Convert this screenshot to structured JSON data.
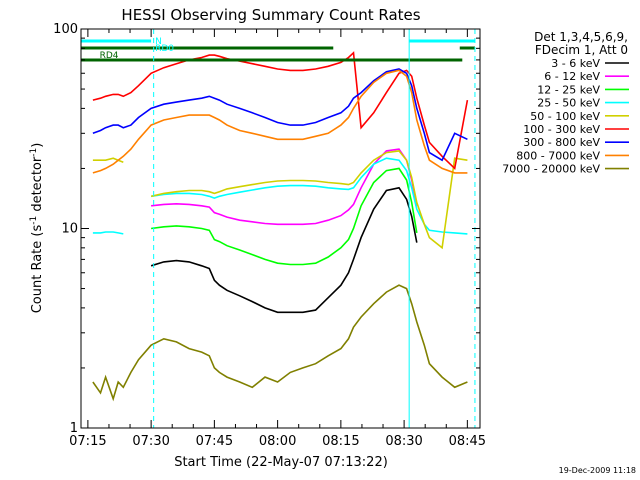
{
  "chart_data": {
    "type": "line",
    "title": "HESSI Observing Summary Count Rates",
    "xlabel": "Start Time (22-May-07 07:13:22)",
    "ylabel": "Count Rate (s⁻¹ detector⁻¹)",
    "ylabel_main": "Count Rate (s",
    "ylabel_sup1": "-1",
    "ylabel_mid": " detector",
    "ylabel_sup2": "-1",
    "ylabel_end": ")",
    "y_scale": "log",
    "xlim": [
      7.2228,
      8.8
    ],
    "ylim": [
      1,
      100
    ],
    "x_ticks": [
      {
        "label": "07:15",
        "value": 7.25
      },
      {
        "label": "07:30",
        "value": 7.5
      },
      {
        "label": "07:45",
        "value": 7.75
      },
      {
        "label": "08:00",
        "value": 8.0
      },
      {
        "label": "08:15",
        "value": 8.25
      },
      {
        "label": "08:30",
        "value": 8.5
      },
      {
        "label": "08:45",
        "value": 8.75
      }
    ],
    "y_ticks": [
      {
        "label": "1",
        "value": 1
      },
      {
        "label": "10",
        "value": 10
      },
      {
        "label": "100",
        "value": 100
      }
    ],
    "legend": {
      "placement": "right",
      "header_line1": "Det 1,3,4,5,6,9,",
      "header_line2": "FDecim 1, Att 0"
    },
    "grid": false,
    "series": [
      {
        "name": "3 - 6 keV",
        "color": "#000000",
        "x": [
          7.27,
          7.3,
          7.32,
          7.35,
          7.37,
          7.39,
          7.42,
          7.45,
          7.5,
          7.55,
          7.6,
          7.65,
          7.7,
          7.73,
          7.75,
          7.77,
          7.8,
          7.85,
          7.9,
          7.95,
          8.0,
          8.05,
          8.1,
          8.15,
          8.2,
          8.25,
          8.28,
          8.3,
          8.33,
          8.38,
          8.43,
          8.48,
          8.51,
          8.53,
          8.55,
          8.58,
          8.6,
          8.65,
          8.7,
          8.75
        ],
        "y": [
          0,
          0,
          0,
          0,
          0,
          0,
          0,
          0,
          6.5,
          6.8,
          6.9,
          6.8,
          6.5,
          6.3,
          5.5,
          5.2,
          4.9,
          4.6,
          4.3,
          4.0,
          3.8,
          3.8,
          3.8,
          3.9,
          4.5,
          5.2,
          6.0,
          7.0,
          9.0,
          12.5,
          15.5,
          16.0,
          14.0,
          11.5,
          8.5,
          0,
          0,
          0,
          0,
          0
        ]
      },
      {
        "name": "6 - 12 keV",
        "color": "#ff00ff",
        "x": [
          7.27,
          7.3,
          7.32,
          7.35,
          7.37,
          7.39,
          7.42,
          7.45,
          7.5,
          7.55,
          7.6,
          7.65,
          7.7,
          7.73,
          7.75,
          7.77,
          7.8,
          7.85,
          7.9,
          7.95,
          8.0,
          8.05,
          8.1,
          8.15,
          8.2,
          8.25,
          8.28,
          8.3,
          8.33,
          8.38,
          8.43,
          8.48,
          8.51,
          8.53,
          8.55,
          8.58,
          8.6,
          8.65,
          8.7,
          8.75
        ],
        "y": [
          0,
          0,
          0,
          0,
          0,
          0,
          0,
          0,
          13.0,
          13.2,
          13.3,
          13.2,
          13.0,
          12.8,
          12.0,
          11.8,
          11.4,
          11.0,
          10.8,
          10.6,
          10.5,
          10.5,
          10.5,
          10.6,
          11.0,
          11.6,
          12.4,
          13.2,
          16.0,
          21.0,
          24.5,
          25.0,
          22.0,
          17.5,
          13.0,
          0,
          0,
          0,
          0,
          0
        ]
      },
      {
        "name": "12 - 25 keV",
        "color": "#00ff00",
        "x": [
          7.27,
          7.3,
          7.32,
          7.35,
          7.37,
          7.39,
          7.42,
          7.45,
          7.5,
          7.55,
          7.6,
          7.65,
          7.7,
          7.73,
          7.75,
          7.77,
          7.8,
          7.85,
          7.9,
          7.95,
          8.0,
          8.05,
          8.1,
          8.15,
          8.2,
          8.25,
          8.28,
          8.3,
          8.33,
          8.38,
          8.43,
          8.48,
          8.51,
          8.53,
          8.55,
          8.58,
          8.6,
          8.65,
          8.7,
          8.75
        ],
        "y": [
          0,
          0,
          0,
          0,
          0,
          0,
          0,
          0,
          10.0,
          10.2,
          10.3,
          10.2,
          10.0,
          9.8,
          8.8,
          8.6,
          8.2,
          7.8,
          7.4,
          7.0,
          6.7,
          6.6,
          6.6,
          6.7,
          7.2,
          8.0,
          8.8,
          10.0,
          13.0,
          17.0,
          19.5,
          20.0,
          17.5,
          13.5,
          9.5,
          0,
          0,
          0,
          0,
          0
        ]
      },
      {
        "name": "25 - 50 keV",
        "color": "#00ffff",
        "x": [
          7.27,
          7.3,
          7.32,
          7.35,
          7.37,
          7.39,
          7.42,
          7.45,
          7.5,
          7.55,
          7.6,
          7.65,
          7.7,
          7.73,
          7.75,
          7.77,
          7.8,
          7.85,
          7.9,
          7.95,
          8.0,
          8.05,
          8.1,
          8.15,
          8.2,
          8.25,
          8.28,
          8.3,
          8.33,
          8.38,
          8.43,
          8.48,
          8.51,
          8.53,
          8.55,
          8.58,
          8.6,
          8.65,
          8.7,
          8.75
        ],
        "y": [
          9.5,
          9.5,
          9.6,
          9.6,
          9.5,
          9.4,
          0,
          0,
          14.5,
          14.8,
          15.0,
          15.0,
          14.8,
          14.5,
          14.2,
          14.5,
          14.8,
          15.2,
          15.6,
          16.0,
          16.3,
          16.4,
          16.4,
          16.3,
          16.0,
          15.8,
          15.7,
          16.0,
          18.0,
          21.0,
          22.5,
          22.0,
          19.5,
          16.0,
          12.5,
          10.5,
          9.8,
          9.6,
          9.5,
          9.4
        ]
      },
      {
        "name": "50 - 100 keV",
        "color": "#d0d000",
        "x": [
          7.27,
          7.3,
          7.32,
          7.35,
          7.37,
          7.39,
          7.42,
          7.45,
          7.5,
          7.55,
          7.6,
          7.65,
          7.7,
          7.73,
          7.75,
          7.77,
          7.8,
          7.85,
          7.9,
          7.95,
          8.0,
          8.05,
          8.1,
          8.15,
          8.2,
          8.25,
          8.28,
          8.3,
          8.33,
          8.38,
          8.43,
          8.48,
          8.51,
          8.53,
          8.55,
          8.58,
          8.6,
          8.65,
          8.7,
          8.75
        ],
        "y": [
          22,
          22,
          22,
          22.5,
          22,
          21.5,
          0,
          0,
          14.5,
          15.0,
          15.3,
          15.5,
          15.5,
          15.3,
          15.0,
          15.3,
          15.8,
          16.2,
          16.6,
          17.0,
          17.3,
          17.4,
          17.4,
          17.3,
          17.0,
          16.8,
          16.6,
          17.0,
          19.0,
          22.0,
          24.0,
          24.5,
          22.0,
          18.0,
          13.5,
          10.5,
          9.0,
          8.0,
          22.5,
          22
        ]
      },
      {
        "name": "100 - 300 keV",
        "color": "#ff0000",
        "x": [
          7.27,
          7.3,
          7.32,
          7.35,
          7.37,
          7.39,
          7.42,
          7.45,
          7.5,
          7.55,
          7.6,
          7.65,
          7.7,
          7.73,
          7.75,
          7.77,
          7.8,
          7.85,
          7.9,
          7.95,
          8.0,
          8.05,
          8.1,
          8.15,
          8.2,
          8.25,
          8.28,
          8.3,
          8.33,
          8.38,
          8.43,
          8.48,
          8.51,
          8.53,
          8.55,
          8.58,
          8.6,
          8.65,
          8.7,
          8.75
        ],
        "y": [
          44,
          45,
          46,
          47,
          47,
          46,
          48,
          52,
          60,
          64,
          67,
          70,
          72,
          74,
          74,
          73,
          71,
          69,
          67,
          65,
          63,
          62,
          62,
          63,
          65,
          68,
          72,
          76,
          32,
          38,
          48,
          60,
          62,
          58,
          45,
          33,
          27,
          23,
          20,
          44
        ]
      },
      {
        "name": "300 - 800 keV",
        "color": "#0000ff",
        "x": [
          7.27,
          7.3,
          7.32,
          7.35,
          7.37,
          7.39,
          7.42,
          7.45,
          7.5,
          7.55,
          7.6,
          7.65,
          7.7,
          7.73,
          7.75,
          7.77,
          7.8,
          7.85,
          7.9,
          7.95,
          8.0,
          8.05,
          8.1,
          8.15,
          8.2,
          8.25,
          8.28,
          8.3,
          8.33,
          8.38,
          8.43,
          8.48,
          8.51,
          8.53,
          8.55,
          8.58,
          8.6,
          8.65,
          8.7,
          8.75
        ],
        "y": [
          30,
          31,
          32,
          33,
          33,
          32,
          33,
          36,
          40,
          42,
          43,
          44,
          45,
          46,
          45,
          44,
          42,
          40,
          38,
          36,
          34,
          33,
          33,
          34,
          36,
          38,
          41,
          45,
          48,
          55,
          61,
          63,
          60,
          52,
          40,
          30,
          24,
          22,
          30,
          28
        ]
      },
      {
        "name": "800 - 7000 keV",
        "color": "#ff8000",
        "x": [
          7.27,
          7.3,
          7.32,
          7.35,
          7.37,
          7.39,
          7.42,
          7.45,
          7.5,
          7.55,
          7.6,
          7.65,
          7.7,
          7.73,
          7.75,
          7.77,
          7.8,
          7.85,
          7.9,
          7.95,
          8.0,
          8.05,
          8.1,
          8.15,
          8.2,
          8.25,
          8.28,
          8.3,
          8.33,
          8.38,
          8.43,
          8.48,
          8.51,
          8.53,
          8.55,
          8.58,
          8.6,
          8.65,
          8.7,
          8.75
        ],
        "y": [
          19,
          19.5,
          20,
          21,
          22,
          23,
          25,
          28,
          33,
          35,
          36,
          37,
          37,
          37,
          36,
          35,
          33,
          31,
          30,
          29,
          28,
          28,
          28,
          29,
          30,
          33,
          36,
          40,
          46,
          54,
          60,
          62,
          58,
          48,
          35,
          26,
          22,
          20,
          19,
          19
        ]
      },
      {
        "name": "7000 - 20000 keV",
        "color": "#808000",
        "x": [
          7.27,
          7.3,
          7.32,
          7.35,
          7.37,
          7.39,
          7.42,
          7.45,
          7.5,
          7.55,
          7.6,
          7.65,
          7.7,
          7.73,
          7.75,
          7.77,
          7.8,
          7.85,
          7.9,
          7.95,
          8.0,
          8.05,
          8.1,
          8.15,
          8.2,
          8.25,
          8.28,
          8.3,
          8.33,
          8.38,
          8.43,
          8.48,
          8.51,
          8.53,
          8.55,
          8.58,
          8.6,
          8.65,
          8.7,
          8.75
        ],
        "y": [
          1.7,
          1.5,
          1.8,
          1.4,
          1.7,
          1.6,
          1.9,
          2.2,
          2.6,
          2.8,
          2.7,
          2.5,
          2.4,
          2.3,
          2.0,
          1.9,
          1.8,
          1.7,
          1.6,
          1.8,
          1.7,
          1.9,
          2.0,
          2.1,
          2.3,
          2.5,
          2.8,
          3.2,
          3.6,
          4.2,
          4.8,
          5.2,
          5.0,
          4.2,
          3.4,
          2.6,
          2.1,
          1.8,
          1.6,
          1.7
        ]
      }
    ],
    "annotations": {
      "N_label": "N",
      "RD0_label": "RD0",
      "RD4_label": "RD4"
    }
  },
  "timestamp": "19-Dec-2009 11:18"
}
